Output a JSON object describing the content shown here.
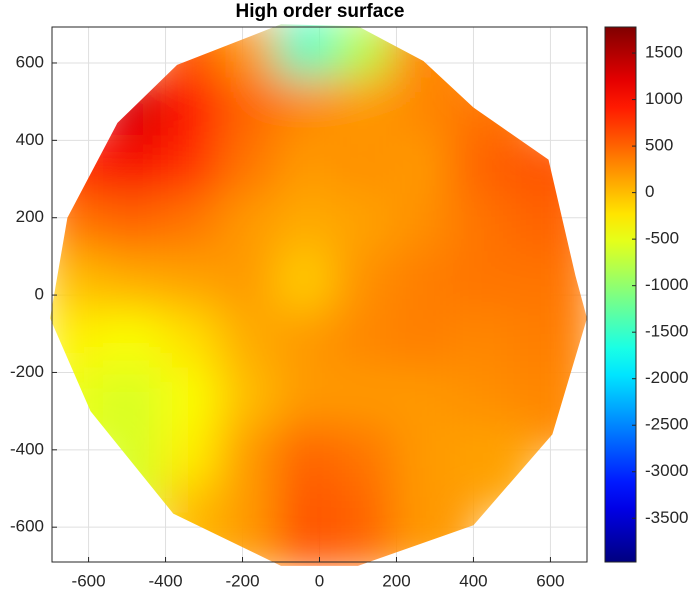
{
  "chart_data": {
    "type": "heatmap",
    "title": "High order surface",
    "x": [
      -600,
      -450,
      -300,
      -150,
      0,
      150,
      300,
      450,
      600
    ],
    "y": [
      600,
      450,
      300,
      150,
      0,
      -150,
      -300,
      -450,
      -600
    ],
    "z": [
      [
        null,
        null,
        600,
        200,
        -1500,
        -800,
        300,
        null,
        null
      ],
      [
        null,
        1300,
        1000,
        500,
        300,
        200,
        300,
        400,
        null
      ],
      [
        900,
        1100,
        800,
        400,
        200,
        250,
        200,
        500,
        600
      ],
      [
        400,
        500,
        400,
        200,
        100,
        150,
        250,
        400,
        500
      ],
      [
        0,
        100,
        150,
        200,
        -100,
        250,
        350,
        400,
        400
      ],
      [
        -300,
        -400,
        -200,
        100,
        200,
        300,
        350,
        300,
        350
      ],
      [
        -500,
        -600,
        -400,
        0,
        200,
        200,
        200,
        250,
        300
      ],
      [
        null,
        -600,
        -300,
        200,
        500,
        400,
        200,
        150,
        null
      ],
      [
        null,
        null,
        0,
        200,
        600,
        500,
        200,
        null,
        null
      ]
    ],
    "xlim": [
      -695,
      695
    ],
    "ylim": [
      -690,
      693
    ],
    "xticks": [
      -600,
      -400,
      -200,
      0,
      200,
      400,
      600
    ],
    "yticks": [
      -600,
      -400,
      -200,
      0,
      200,
      400,
      600
    ],
    "grid": true,
    "colorbar": {
      "colormap": "jet",
      "lim": [
        -3970,
        1780
      ],
      "ticks": [
        1500,
        1000,
        500,
        0,
        -500,
        -1000,
        -1500,
        -2000,
        -2500,
        -3000,
        -3500
      ]
    }
  }
}
